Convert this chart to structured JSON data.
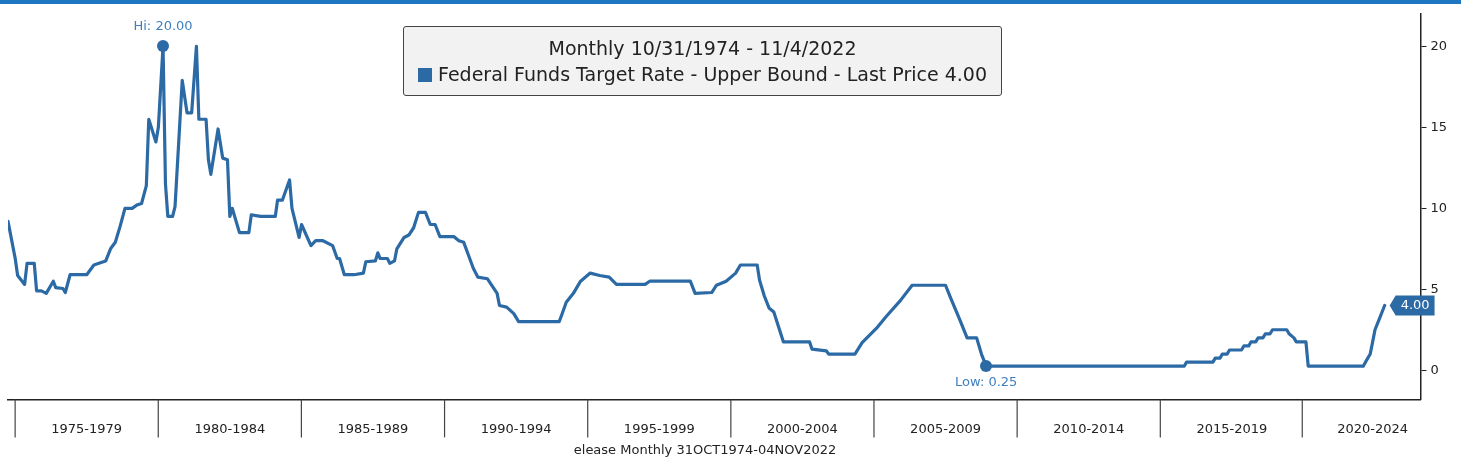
{
  "chart_data": {
    "type": "line",
    "legend_title": "Monthly 10/31/1974 - 11/4/2022",
    "legend": "top",
    "marker": "none",
    "line_style": "solid",
    "grid": false,
    "xlim": [
      "1974-10",
      "2024-02"
    ],
    "ylim": [
      -1.8,
      22
    ],
    "yticks": [
      0,
      5,
      10,
      15,
      20
    ],
    "xticks": [
      {
        "value": "1977-07",
        "label": "1975-1979"
      },
      {
        "value": "1982-07",
        "label": "1980-1984"
      },
      {
        "value": "1987-07",
        "label": "1985-1989"
      },
      {
        "value": "1992-07",
        "label": "1990-1994"
      },
      {
        "value": "1997-07",
        "label": "1995-1999"
      },
      {
        "value": "2002-07",
        "label": "2000-2004"
      },
      {
        "value": "2007-07",
        "label": "2005-2009"
      },
      {
        "value": "2012-07",
        "label": "2010-2014"
      },
      {
        "value": "2017-07",
        "label": "2015-2019"
      },
      {
        "value": "2022-06",
        "label": "2020-2024"
      }
    ],
    "annotations": [
      {
        "text": "Hi: 20.00",
        "x": "1980-03",
        "y": 20
      },
      {
        "text": "Low: 0.25",
        "x": "2008-12",
        "y": 0.25
      },
      {
        "text": "4.00",
        "x": "2022-11",
        "y": 4
      },
      "elease Monthly 31OCT1974-04NOV2022"
    ],
    "series": [
      {
        "name": "Federal Funds Target Rate - Upper Bound - Last Price 4.00",
        "color": "#2c6aa6",
        "x": [
          "1974-10",
          "1975-01",
          "1975-02",
          "1975-05",
          "1975-06",
          "1975-09",
          "1975-10",
          "1975-12",
          "1976-02",
          "1976-05",
          "1976-06",
          "1976-09",
          "1976-10",
          "1976-12",
          "1977-07",
          "1977-10",
          "1978-01",
          "1978-03",
          "1978-05",
          "1978-07",
          "1978-09",
          "1978-11",
          "1979-02",
          "1979-04",
          "1979-06",
          "1979-08",
          "1979-09",
          "1979-12",
          "1980-01",
          "1980-03",
          "1980-04",
          "1980-05",
          "1980-07",
          "1980-08",
          "1980-11",
          "1981-01",
          "1981-03",
          "1981-05",
          "1981-06",
          "1981-09",
          "1981-10",
          "1981-11",
          "1982-02",
          "1982-04",
          "1982-06",
          "1982-07",
          "1982-08",
          "1982-11",
          "1983-03",
          "1983-04",
          "1983-08",
          "1984-02",
          "1984-03",
          "1984-05",
          "1984-08",
          "1984-09",
          "1984-12",
          "1985-01",
          "1985-05",
          "1985-07",
          "1985-10",
          "1986-02",
          "1986-04",
          "1986-05",
          "1986-07",
          "1986-11",
          "1987-03",
          "1987-04",
          "1987-08",
          "1987-09",
          "1987-10",
          "1988-01",
          "1988-02",
          "1988-04",
          "1988-05",
          "1988-08",
          "1988-10",
          "1988-12",
          "1989-02",
          "1989-05",
          "1989-07",
          "1989-09",
          "1989-11",
          "1990-05",
          "1990-07",
          "1990-09",
          "1990-11",
          "1991-01",
          "1991-03",
          "1991-07",
          "1991-11",
          "1991-12",
          "1992-03",
          "1992-06",
          "1992-08",
          "1994-01",
          "1994-02",
          "1994-04",
          "1994-07",
          "1994-10",
          "1995-02",
          "1995-06",
          "1995-10",
          "1996-01",
          "1997-01",
          "1997-03",
          "1998-08",
          "1998-10",
          "1999-05",
          "1999-07",
          "1999-11",
          "2000-03",
          "2000-05",
          "2000-12",
          "2001-01",
          "2001-03",
          "2001-05",
          "2001-07",
          "2001-11",
          "2002-10",
          "2002-11",
          "2003-05",
          "2003-06",
          "2004-05",
          "2004-08",
          "2005-02",
          "2005-06",
          "2005-12",
          "2006-05",
          "2007-07",
          "2007-09",
          "2008-01",
          "2008-04",
          "2008-08",
          "2008-10",
          "2008-12",
          "2015-11",
          "2015-12",
          "2016-11",
          "2016-12",
          "2017-02",
          "2017-03",
          "2017-05",
          "2017-06",
          "2017-11",
          "2017-12",
          "2018-02",
          "2018-03",
          "2018-05",
          "2018-06",
          "2018-08",
          "2018-09",
          "2018-11",
          "2018-12",
          "2019-06",
          "2019-07",
          "2019-09",
          "2019-10",
          "2020-02",
          "2020-03",
          "2022-02",
          "2022-03",
          "2022-05",
          "2022-06",
          "2022-07",
          "2022-09",
          "2022-11"
        ],
        "values": [
          9.2,
          6.9,
          5.85,
          5.3,
          6.6,
          6.6,
          4.9,
          4.9,
          4.75,
          5.5,
          5.1,
          5.05,
          4.8,
          5.9,
          5.9,
          6.5,
          6.65,
          6.75,
          7.5,
          7.9,
          8.9,
          10,
          10,
          10.2,
          10.3,
          11.4,
          15.5,
          14.1,
          15,
          20,
          11.5,
          9.5,
          9.5,
          10.1,
          17.9,
          15.9,
          15.9,
          20,
          15.5,
          15.5,
          13,
          12.1,
          14.9,
          13.1,
          13,
          9.5,
          10,
          8.5,
          8.5,
          9.6,
          9.5,
          9.5,
          10.5,
          10.5,
          11.75,
          10,
          8.2,
          9,
          7.7,
          8,
          8,
          7.7,
          6.9,
          6.9,
          5.9,
          5.9,
          6,
          6.7,
          6.75,
          7.25,
          6.9,
          6.9,
          6.6,
          6.75,
          7.5,
          8.2,
          8.35,
          8.8,
          9.75,
          9.75,
          9,
          9,
          8.25,
          8.25,
          8,
          7.9,
          7.1,
          6.3,
          5.75,
          5.65,
          4.75,
          4,
          3.9,
          3.5,
          3,
          3,
          3.4,
          4.2,
          4.75,
          5.5,
          6,
          5.85,
          5.75,
          5.3,
          5.3,
          5.5,
          5.5,
          4.75,
          4.8,
          5.25,
          5.5,
          6,
          6.5,
          6.5,
          5.55,
          4.6,
          3.85,
          3.6,
          1.75,
          1.75,
          1.3,
          1.2,
          1,
          1,
          1.7,
          2.6,
          3.3,
          4.3,
          5.25,
          5.25,
          4.5,
          3.1,
          2,
          2,
          1,
          0.25,
          0.25,
          0.5,
          0.5,
          0.75,
          0.75,
          1,
          1,
          1.25,
          1.25,
          1.5,
          1.5,
          1.75,
          1.75,
          2,
          2,
          2.25,
          2.25,
          2.5,
          2.5,
          2.25,
          2,
          1.75,
          1.75,
          0.25,
          0.25,
          0.5,
          1,
          1.75,
          2.5,
          3.25,
          4
        ]
      }
    ]
  }
}
